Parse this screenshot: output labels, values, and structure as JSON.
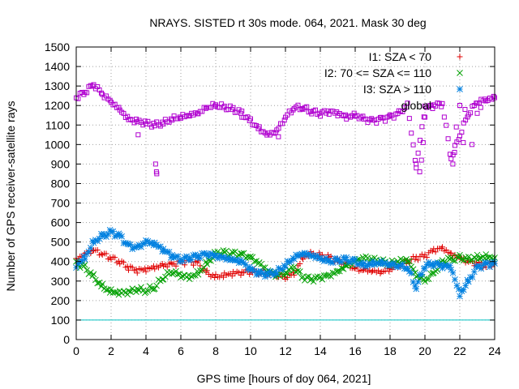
{
  "chart_data": {
    "type": "scatter",
    "title": "NRAYS. SISTED rt 30s mode. 064, 2021. Mask 30 deg",
    "xlabel": "GPS time [hours of doy 064, 2021]",
    "ylabel": "Number of GPS receiver-satellite rays",
    "xlim": [
      0,
      24
    ],
    "ylim": [
      0,
      1500
    ],
    "x_ticks": [
      "0",
      "2",
      "4",
      "6",
      "8",
      "10",
      "12",
      "14",
      "16",
      "18",
      "20",
      "22",
      "24"
    ],
    "y_ticks": [
      "0",
      "100",
      "200",
      "300",
      "400",
      "500",
      "600",
      "700",
      "800",
      "900",
      "1000",
      "1100",
      "1200",
      "1300",
      "1400",
      "1500"
    ],
    "grid": true,
    "legend_position": "top-right",
    "threshold_line": {
      "y": 100,
      "color": "#00c0c0"
    },
    "series": [
      {
        "name": "I1: SZA < 70",
        "marker": "+",
        "color": "#e00000",
        "points": [
          [
            0,
            410
          ],
          [
            0.5,
            440
          ],
          [
            1,
            460
          ],
          [
            1.5,
            440
          ],
          [
            2,
            420
          ],
          [
            2.5,
            400
          ],
          [
            3,
            370
          ],
          [
            3.5,
            355
          ],
          [
            4,
            360
          ],
          [
            4.5,
            370
          ],
          [
            5,
            380
          ],
          [
            5.5,
            385
          ],
          [
            6,
            395
          ],
          [
            6.5,
            400
          ],
          [
            7,
            390
          ],
          [
            7.5,
            340
          ],
          [
            8,
            320
          ],
          [
            8.5,
            330
          ],
          [
            9,
            340
          ],
          [
            9.5,
            345
          ],
          [
            10,
            350
          ],
          [
            10.5,
            345
          ],
          [
            11,
            340
          ],
          [
            11.5,
            330
          ],
          [
            12,
            320
          ],
          [
            12.5,
            340
          ],
          [
            13,
            420
          ],
          [
            13.5,
            440
          ],
          [
            14,
            430
          ],
          [
            14.5,
            420
          ],
          [
            15,
            400
          ],
          [
            15.5,
            390
          ],
          [
            16,
            360
          ],
          [
            16.5,
            355
          ],
          [
            17,
            350
          ],
          [
            17.5,
            345
          ],
          [
            18,
            360
          ],
          [
            18.5,
            380
          ],
          [
            19,
            400
          ],
          [
            19.5,
            420
          ],
          [
            20,
            430
          ],
          [
            20.5,
            460
          ],
          [
            21,
            470
          ],
          [
            21.5,
            440
          ],
          [
            22,
            420
          ],
          [
            22.5,
            400
          ],
          [
            23,
            390
          ],
          [
            23.5,
            380
          ],
          [
            24,
            390
          ]
        ]
      },
      {
        "name": "I2: 70 <= SZA <= 110",
        "marker": "x",
        "color": "#00a000",
        "points": [
          [
            0,
            390
          ],
          [
            0.5,
            370
          ],
          [
            1,
            320
          ],
          [
            1.5,
            270
          ],
          [
            2,
            245
          ],
          [
            2.5,
            240
          ],
          [
            3,
            245
          ],
          [
            3.5,
            260
          ],
          [
            4,
            250
          ],
          [
            4.5,
            270
          ],
          [
            5,
            320
          ],
          [
            5.5,
            350
          ],
          [
            6,
            330
          ],
          [
            6.5,
            320
          ],
          [
            7,
            340
          ],
          [
            7.5,
            390
          ],
          [
            8,
            440
          ],
          [
            8.5,
            445
          ],
          [
            9,
            440
          ],
          [
            9.5,
            435
          ],
          [
            10,
            420
          ],
          [
            10.5,
            390
          ],
          [
            11,
            350
          ],
          [
            11.5,
            330
          ],
          [
            12,
            340
          ],
          [
            12.5,
            370
          ],
          [
            13,
            320
          ],
          [
            13.5,
            310
          ],
          [
            14,
            320
          ],
          [
            14.5,
            330
          ],
          [
            15,
            350
          ],
          [
            15.5,
            380
          ],
          [
            16,
            400
          ],
          [
            16.5,
            420
          ],
          [
            17,
            410
          ],
          [
            17.5,
            400
          ],
          [
            18,
            390
          ],
          [
            18.5,
            400
          ],
          [
            19,
            410
          ],
          [
            19.5,
            330
          ],
          [
            20,
            300
          ],
          [
            20.5,
            340
          ],
          [
            21,
            400
          ],
          [
            21.5,
            410
          ],
          [
            22,
            420
          ],
          [
            22.5,
            410
          ],
          [
            23,
            420
          ],
          [
            23.5,
            425
          ],
          [
            24,
            420
          ]
        ]
      },
      {
        "name": "I3: SZA > 110",
        "marker": "*",
        "color": "#0080e0",
        "points": [
          [
            0,
            380
          ],
          [
            0.5,
            420
          ],
          [
            1,
            500
          ],
          [
            1.5,
            530
          ],
          [
            2,
            550
          ],
          [
            2.5,
            530
          ],
          [
            3,
            480
          ],
          [
            3.5,
            470
          ],
          [
            4,
            500
          ],
          [
            4.5,
            490
          ],
          [
            5,
            460
          ],
          [
            5.5,
            430
          ],
          [
            6,
            410
          ],
          [
            6.5,
            420
          ],
          [
            7,
            430
          ],
          [
            7.5,
            440
          ],
          [
            8,
            430
          ],
          [
            8.5,
            420
          ],
          [
            9,
            410
          ],
          [
            9.5,
            400
          ],
          [
            10,
            360
          ],
          [
            10.5,
            340
          ],
          [
            11,
            335
          ],
          [
            11.5,
            345
          ],
          [
            12,
            380
          ],
          [
            12.5,
            420
          ],
          [
            13,
            440
          ],
          [
            13.5,
            430
          ],
          [
            14,
            415
          ],
          [
            14.5,
            400
          ],
          [
            15,
            405
          ],
          [
            15.5,
            410
          ],
          [
            16,
            400
          ],
          [
            16.5,
            380
          ],
          [
            17,
            390
          ],
          [
            17.5,
            395
          ],
          [
            18,
            385
          ],
          [
            18.5,
            380
          ],
          [
            19,
            370
          ],
          [
            19.5,
            270
          ],
          [
            20,
            380
          ],
          [
            20.5,
            390
          ],
          [
            21,
            380
          ],
          [
            21.5,
            370
          ],
          [
            22,
            230
          ],
          [
            22.5,
            300
          ],
          [
            23,
            370
          ],
          [
            23.5,
            385
          ],
          [
            24,
            390
          ]
        ]
      },
      {
        "name": "global",
        "marker": "square",
        "color": "#b000d0",
        "points": [
          [
            0,
            1240
          ],
          [
            0.5,
            1270
          ],
          [
            1,
            1310
          ],
          [
            1.5,
            1260
          ],
          [
            2,
            1220
          ],
          [
            2.5,
            1180
          ],
          [
            3,
            1130
          ],
          [
            3.5,
            1120
          ],
          [
            4,
            1110
          ],
          [
            4.5,
            1100
          ],
          [
            5,
            1110
          ],
          [
            5.5,
            1130
          ],
          [
            6,
            1140
          ],
          [
            6.5,
            1150
          ],
          [
            7,
            1160
          ],
          [
            7.5,
            1190
          ],
          [
            8,
            1200
          ],
          [
            8.5,
            1190
          ],
          [
            9,
            1180
          ],
          [
            9.5,
            1160
          ],
          [
            10,
            1120
          ],
          [
            10.5,
            1080
          ],
          [
            11,
            1050
          ],
          [
            11.5,
            1070
          ],
          [
            12,
            1140
          ],
          [
            12.5,
            1190
          ],
          [
            13,
            1190
          ],
          [
            13.5,
            1170
          ],
          [
            14,
            1160
          ],
          [
            14.5,
            1170
          ],
          [
            15,
            1160
          ],
          [
            15.5,
            1140
          ],
          [
            16,
            1150
          ],
          [
            16.5,
            1130
          ],
          [
            17,
            1120
          ],
          [
            17.5,
            1130
          ],
          [
            18,
            1140
          ],
          [
            18.5,
            1160
          ],
          [
            19,
            1200
          ],
          [
            19.5,
            890
          ],
          [
            20,
            1190
          ],
          [
            20.5,
            1200
          ],
          [
            21,
            1210
          ],
          [
            21.5,
            930
          ],
          [
            22,
            1050
          ],
          [
            22.5,
            1160
          ],
          [
            23,
            1220
          ],
          [
            23.5,
            1230
          ],
          [
            24,
            1240
          ]
        ],
        "outliers": [
          [
            3.55,
            1050
          ],
          [
            4.55,
            900
          ],
          [
            4.6,
            860
          ],
          [
            4.62,
            850
          ],
          [
            9.5,
            1140
          ],
          [
            11.6,
            1040
          ],
          [
            19.5,
            880
          ],
          [
            19.7,
            860
          ],
          [
            19.8,
            920
          ],
          [
            19.9,
            1010
          ],
          [
            20,
            1140
          ],
          [
            21.6,
            900
          ],
          [
            21.7,
            960
          ],
          [
            21.8,
            1090
          ],
          [
            22.0,
            1200
          ],
          [
            22.2,
            1010
          ],
          [
            22.3,
            1180
          ],
          [
            22.7,
            1000
          ],
          [
            23.0,
            1160
          ],
          [
            23.2,
            1190
          ]
        ]
      }
    ]
  }
}
